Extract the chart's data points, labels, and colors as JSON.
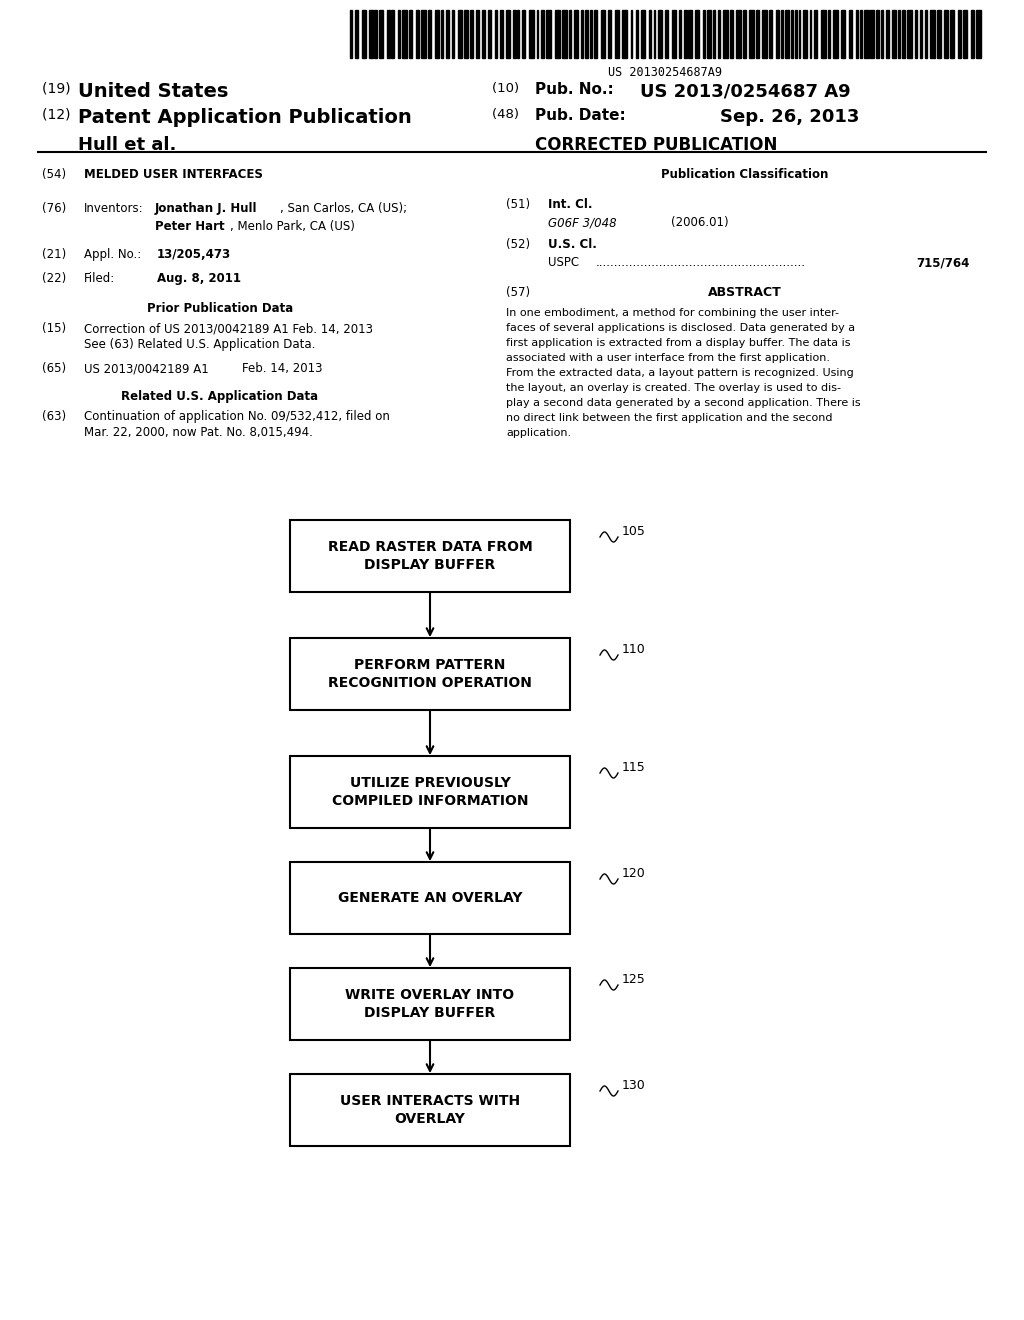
{
  "background_color": "#ffffff",
  "barcode_text": "US 20130254687A9",
  "flow_boxes": [
    {
      "label": "READ RASTER DATA FROM\nDISPLAY BUFFER",
      "ref": "105"
    },
    {
      "label": "PERFORM PATTERN\nRECOGNITION OPERATION",
      "ref": "110"
    },
    {
      "label": "UTILIZE PREVIOUSLY\nCOMPILED INFORMATION",
      "ref": "115"
    },
    {
      "label": "GENERATE AN OVERLAY",
      "ref": "120"
    },
    {
      "label": "WRITE OVERLAY INTO\nDISPLAY BUFFER",
      "ref": "125"
    },
    {
      "label": "USER INTERACTS WITH\nOVERLAY",
      "ref": "130"
    }
  ],
  "abstract_lines": [
    "In one embodiment, a method for combining the user inter-",
    "faces of several applications is disclosed. Data generated by a",
    "first application is extracted from a display buffer. The data is",
    "associated with a user interface from the first application.",
    "From the extracted data, a layout pattern is recognized. Using",
    "the layout, an overlay is created. The overlay is used to dis-",
    "play a second data generated by a second application. There is",
    "no direct link between the first application and the second",
    "application."
  ]
}
